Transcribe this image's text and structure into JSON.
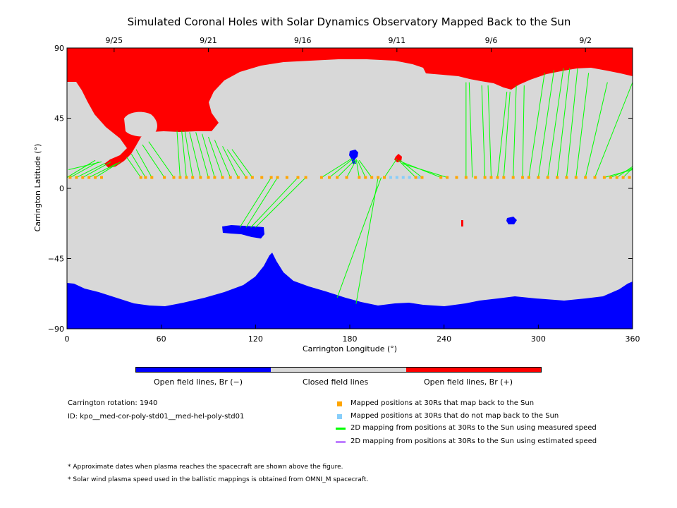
{
  "chart_data": {
    "type": "scatter",
    "title": "Simulated Coronal Holes with Solar Dynamics Observatory Mapped Back to the Sun",
    "xlabel": "Carrington Longitude (°)",
    "ylabel": "Carrington Latitude (°)",
    "xlim": [
      0,
      360
    ],
    "ylim": [
      -90,
      90
    ],
    "x_ticks": [
      "0",
      "60",
      "120",
      "180",
      "240",
      "300",
      "360"
    ],
    "y_ticks": [
      "90",
      "45",
      "0",
      "−45",
      "−90"
    ],
    "top_dates": [
      {
        "label": "9/25",
        "lon": 30
      },
      {
        "label": "9/21",
        "lon": 90
      },
      {
        "label": "9/16",
        "lon": 150
      },
      {
        "label": "9/11",
        "lon": 210
      },
      {
        "label": "9/6",
        "lon": 270
      },
      {
        "label": "9/2",
        "lon": 330
      }
    ],
    "mapped_latitude": 7,
    "mapped_lon_yes": [
      2,
      6,
      10,
      14,
      18,
      22,
      47,
      50,
      54,
      62,
      68,
      72,
      76,
      80,
      85,
      90,
      94,
      99,
      104,
      109,
      114,
      118,
      124,
      130,
      134,
      140,
      147,
      152,
      162,
      167,
      172,
      178,
      186,
      190,
      194,
      198,
      202,
      222,
      226,
      238,
      242,
      248,
      254,
      260,
      266,
      270,
      274,
      278,
      284,
      290,
      294,
      300,
      306,
      312,
      318,
      324,
      330,
      336,
      342,
      346,
      350,
      354,
      358
    ],
    "mapped_lon_no": [
      206,
      210,
      214,
      218,
      224
    ],
    "field_lines": [
      {
        "from": [
          2,
          7
        ],
        "to": [
          20,
          17
        ]
      },
      {
        "from": [
          6,
          7
        ],
        "to": [
          24,
          16
        ]
      },
      {
        "from": [
          10,
          7
        ],
        "to": [
          28,
          17
        ]
      },
      {
        "from": [
          14,
          7
        ],
        "to": [
          32,
          16
        ]
      },
      {
        "from": [
          18,
          7
        ],
        "to": [
          34,
          17
        ]
      },
      {
        "from": [
          0,
          7
        ],
        "to": [
          18,
          18
        ]
      },
      {
        "from": [
          1,
          12
        ],
        "to": [
          22,
          17
        ]
      },
      {
        "from": [
          47,
          7
        ],
        "to": [
          38,
          20
        ]
      },
      {
        "from": [
          50,
          7
        ],
        "to": [
          41,
          22
        ]
      },
      {
        "from": [
          54,
          7
        ],
        "to": [
          44,
          25
        ]
      },
      {
        "from": [
          62,
          7
        ],
        "to": [
          48,
          28
        ]
      },
      {
        "from": [
          68,
          7
        ],
        "to": [
          52,
          30
        ]
      },
      {
        "from": [
          72,
          7
        ],
        "to": [
          70,
          37
        ]
      },
      {
        "from": [
          76,
          7
        ],
        "to": [
          73,
          37
        ]
      },
      {
        "from": [
          80,
          7
        ],
        "to": [
          75,
          37
        ]
      },
      {
        "from": [
          85,
          7
        ],
        "to": [
          78,
          36
        ]
      },
      {
        "from": [
          90,
          7
        ],
        "to": [
          82,
          36
        ]
      },
      {
        "from": [
          94,
          7
        ],
        "to": [
          86,
          35
        ]
      },
      {
        "from": [
          99,
          7
        ],
        "to": [
          90,
          33
        ]
      },
      {
        "from": [
          104,
          7
        ],
        "to": [
          94,
          31
        ]
      },
      {
        "from": [
          109,
          7
        ],
        "to": [
          99,
          27
        ]
      },
      {
        "from": [
          114,
          7
        ],
        "to": [
          102,
          25
        ]
      },
      {
        "from": [
          118,
          7
        ],
        "to": [
          105,
          25
        ]
      },
      {
        "from": [
          130,
          7
        ],
        "to": [
          110,
          -25
        ]
      },
      {
        "from": [
          134,
          7
        ],
        "to": [
          114,
          -25
        ]
      },
      {
        "from": [
          147,
          7
        ],
        "to": [
          117,
          -25
        ]
      },
      {
        "from": [
          152,
          7
        ],
        "to": [
          120,
          -25
        ]
      },
      {
        "from": [
          162,
          7
        ],
        "to": [
          181,
          19
        ]
      },
      {
        "from": [
          167,
          7
        ],
        "to": [
          182,
          19
        ]
      },
      {
        "from": [
          172,
          7
        ],
        "to": [
          183,
          18
        ]
      },
      {
        "from": [
          178,
          7
        ],
        "to": [
          184,
          18
        ]
      },
      {
        "from": [
          186,
          7
        ],
        "to": [
          184,
          19
        ]
      },
      {
        "from": [
          190,
          7
        ],
        "to": [
          185,
          18
        ]
      },
      {
        "from": [
          194,
          7
        ],
        "to": [
          186,
          18
        ]
      },
      {
        "from": [
          198,
          7
        ],
        "to": [
          184,
          -74
        ]
      },
      {
        "from": [
          200,
          7
        ],
        "to": [
          172,
          -70
        ]
      },
      {
        "from": [
          202,
          7
        ],
        "to": [
          210,
          19
        ]
      },
      {
        "from": [
          222,
          7
        ],
        "to": [
          211,
          18
        ]
      },
      {
        "from": [
          226,
          7
        ],
        "to": [
          212,
          18
        ]
      },
      {
        "from": [
          238,
          7
        ],
        "to": [
          213,
          17
        ]
      },
      {
        "from": [
          242,
          7
        ],
        "to": [
          213,
          16
        ]
      },
      {
        "from": [
          254,
          7
        ],
        "to": [
          254,
          68
        ]
      },
      {
        "from": [
          258,
          7
        ],
        "to": [
          256,
          68
        ]
      },
      {
        "from": [
          266,
          7
        ],
        "to": [
          264,
          66
        ]
      },
      {
        "from": [
          270,
          7
        ],
        "to": [
          268,
          66
        ]
      },
      {
        "from": [
          274,
          7
        ],
        "to": [
          280,
          62
        ]
      },
      {
        "from": [
          278,
          7
        ],
        "to": [
          282,
          62
        ]
      },
      {
        "from": [
          284,
          7
        ],
        "to": [
          286,
          66
        ]
      },
      {
        "from": [
          290,
          7
        ],
        "to": [
          291,
          66
        ]
      },
      {
        "from": [
          294,
          7
        ],
        "to": [
          304,
          74
        ]
      },
      {
        "from": [
          300,
          7
        ],
        "to": [
          310,
          76
        ]
      },
      {
        "from": [
          306,
          7
        ],
        "to": [
          316,
          77
        ]
      },
      {
        "from": [
          312,
          7
        ],
        "to": [
          320,
          77
        ]
      },
      {
        "from": [
          318,
          7
        ],
        "to": [
          325,
          77
        ]
      },
      {
        "from": [
          324,
          7
        ],
        "to": [
          332,
          74
        ]
      },
      {
        "from": [
          330,
          7
        ],
        "to": [
          344,
          68
        ]
      },
      {
        "from": [
          336,
          7
        ],
        "to": [
          360,
          68
        ]
      },
      {
        "from": [
          342,
          7
        ],
        "to": [
          360,
          12
        ]
      },
      {
        "from": [
          346,
          7
        ],
        "to": [
          360,
          13
        ]
      },
      {
        "from": [
          350,
          7
        ],
        "to": [
          360,
          14
        ]
      },
      {
        "from": [
          354,
          7
        ],
        "to": [
          360,
          13
        ]
      }
    ],
    "colors": {
      "open_negative": "#0000ff",
      "closed": "#d8d8d8",
      "open_positive": "#ff0000",
      "mapped_yes": "#ffa500",
      "mapped_no": "#87cefa",
      "measured_speed": "#00ff00",
      "estimated_speed": "#bf80ff"
    }
  },
  "colorbar": {
    "negative_label": "Open field lines, Br (−)",
    "closed_label": "Closed field lines",
    "positive_label": "Open field lines, Br (+)"
  },
  "info": {
    "rotation": "Carrington rotation: 1940",
    "id": "ID: kpo__med-cor-poly-std01__med-hel-poly-std01"
  },
  "legend": {
    "mapped_yes": "Mapped positions at 30Rs that map back to the Sun",
    "mapped_no": "Mapped positions at 30Rs that do not map back to the Sun",
    "measured": "2D mapping from positions at 30Rs to the Sun using measured speed",
    "estimated": "2D mapping from positions at 30Rs to the Sun using estimated speed"
  },
  "notes": {
    "note1": "* Approximate dates when plasma reaches the spacecraft are shown above the figure.",
    "note2": "* Solar wind plasma speed used in the ballistic mappings is obtained from OMNI_M spacecraft."
  }
}
